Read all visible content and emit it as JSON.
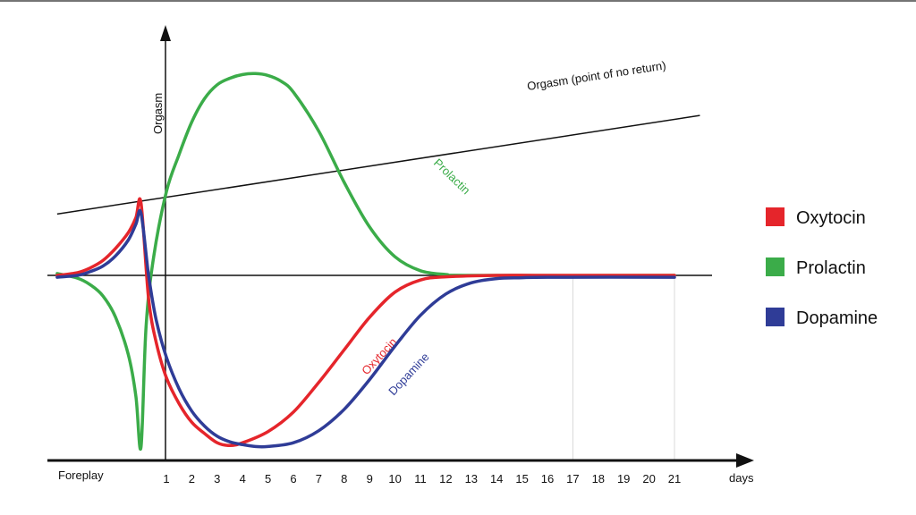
{
  "chart_data": {
    "type": "line",
    "y_axis_label": "Orgasm",
    "x_axis_start_label": "Foreplay",
    "x_unit_label": "days",
    "x_ticks": [
      "1",
      "2",
      "3",
      "4",
      "5",
      "6",
      "7",
      "8",
      "9",
      "10",
      "11",
      "12",
      "13",
      "14",
      "15",
      "16",
      "17",
      "18",
      "19",
      "20",
      "21"
    ],
    "threshold_line": {
      "label": "Orgasm (point of no return)",
      "from": [
        -3.3,
        0.66
      ],
      "to": [
        22.0,
        1.72
      ]
    },
    "series": [
      {
        "name": "Oxytocin",
        "color": "#e5252b",
        "label": "Oxytocin",
        "points": [
          [
            -3.3,
            0.0
          ],
          [
            -2.5,
            0.03
          ],
          [
            -2,
            0.08
          ],
          [
            -1.5,
            0.16
          ],
          [
            -1,
            0.29
          ],
          [
            -0.5,
            0.46
          ],
          [
            -0.2,
            0.62
          ],
          [
            0,
            0.78
          ],
          [
            0.3,
            -0.25
          ],
          [
            0.6,
            -0.72
          ],
          [
            1,
            -1.1
          ],
          [
            1.5,
            -1.38
          ],
          [
            2,
            -1.58
          ],
          [
            2.5,
            -1.7
          ],
          [
            3,
            -1.8
          ],
          [
            3.5,
            -1.83
          ],
          [
            4,
            -1.8
          ],
          [
            5,
            -1.68
          ],
          [
            6,
            -1.47
          ],
          [
            7,
            -1.15
          ],
          [
            8,
            -0.8
          ],
          [
            9,
            -0.45
          ],
          [
            10,
            -0.18
          ],
          [
            11,
            -0.05
          ],
          [
            12,
            -0.015
          ],
          [
            14,
            0.0
          ],
          [
            16,
            0.0
          ],
          [
            21,
            0.0
          ]
        ]
      },
      {
        "name": "Dopamine",
        "color": "#2f3c97",
        "label": "Dopamine",
        "points": [
          [
            -3.3,
            -0.02
          ],
          [
            -2.5,
            0.0
          ],
          [
            -2,
            0.04
          ],
          [
            -1.5,
            0.1
          ],
          [
            -1,
            0.21
          ],
          [
            -0.5,
            0.38
          ],
          [
            -0.2,
            0.55
          ],
          [
            0,
            0.67
          ],
          [
            0.3,
            0.0
          ],
          [
            0.6,
            -0.48
          ],
          [
            1,
            -0.88
          ],
          [
            1.5,
            -1.22
          ],
          [
            2,
            -1.46
          ],
          [
            2.5,
            -1.62
          ],
          [
            3,
            -1.73
          ],
          [
            3.5,
            -1.79
          ],
          [
            4,
            -1.82
          ],
          [
            4.5,
            -1.84
          ],
          [
            5,
            -1.84
          ],
          [
            6,
            -1.8
          ],
          [
            7,
            -1.67
          ],
          [
            8,
            -1.44
          ],
          [
            9,
            -1.12
          ],
          [
            10,
            -0.76
          ],
          [
            11,
            -0.43
          ],
          [
            12,
            -0.2
          ],
          [
            13,
            -0.08
          ],
          [
            14,
            -0.035
          ],
          [
            15,
            -0.025
          ],
          [
            16,
            -0.02
          ],
          [
            21,
            -0.02
          ]
        ]
      },
      {
        "name": "Prolactin",
        "color": "#3bac49",
        "label": "Prolactin",
        "points": [
          [
            -3.3,
            0.02
          ],
          [
            -2.5,
            -0.03
          ],
          [
            -2,
            -0.1
          ],
          [
            -1.5,
            -0.22
          ],
          [
            -1,
            -0.45
          ],
          [
            -0.5,
            -0.85
          ],
          [
            -0.2,
            -1.3
          ],
          [
            0,
            -1.85
          ],
          [
            0.2,
            -0.55
          ],
          [
            0.5,
            0.2
          ],
          [
            1,
            0.9
          ],
          [
            1.5,
            1.3
          ],
          [
            2,
            1.65
          ],
          [
            2.5,
            1.9
          ],
          [
            3,
            2.05
          ],
          [
            3.5,
            2.12
          ],
          [
            4,
            2.16
          ],
          [
            4.5,
            2.17
          ],
          [
            5,
            2.15
          ],
          [
            5.5,
            2.09
          ],
          [
            6,
            1.97
          ],
          [
            7,
            1.55
          ],
          [
            8,
            1.0
          ],
          [
            9,
            0.52
          ],
          [
            10,
            0.2
          ],
          [
            11,
            0.05
          ],
          [
            12,
            0.01
          ],
          [
            13,
            0.0
          ],
          [
            21,
            0.0
          ]
        ]
      }
    ],
    "legend": {
      "position": "right",
      "entries": [
        {
          "name": "Oxytocin",
          "color": "#e5252b"
        },
        {
          "name": "Prolactin",
          "color": "#3bac49"
        },
        {
          "name": "Dopamine",
          "color": "#2f3c97"
        }
      ]
    },
    "vertical_gridlines_at": [
      17,
      21
    ]
  }
}
